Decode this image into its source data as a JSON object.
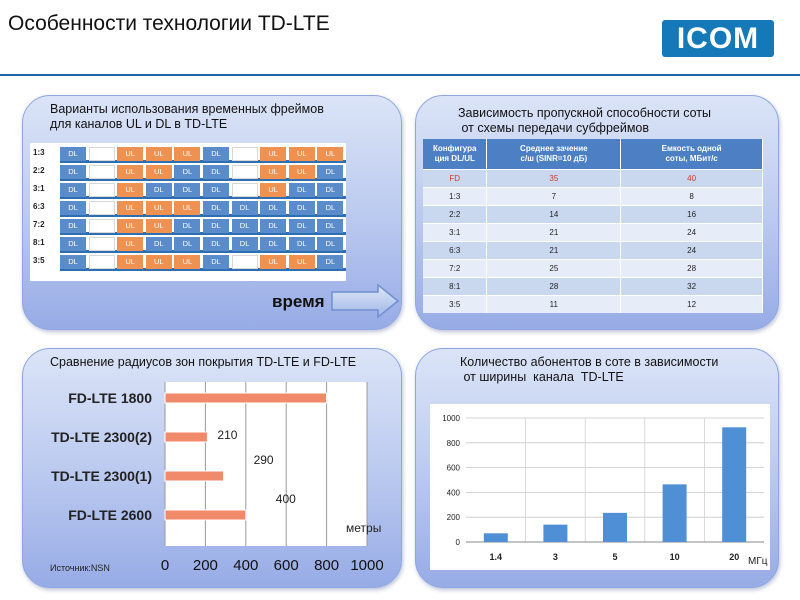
{
  "title": "Особенности технологии TD-LTE",
  "logo": "ICOM",
  "panels": {
    "frames": {
      "title": "Варианты использования временных фреймов\nдля каналов UL и DL в TD-LTE",
      "time_label": "время",
      "rows": [
        {
          "label": "1:3",
          "cells": [
            "DL",
            "",
            "UL",
            "UL",
            "UL",
            "DL",
            "",
            "UL",
            "UL",
            "UL"
          ]
        },
        {
          "label": "2:2",
          "cells": [
            "DL",
            "",
            "UL",
            "UL",
            "DL",
            "DL",
            "",
            "UL",
            "UL",
            "DL"
          ]
        },
        {
          "label": "3:1",
          "cells": [
            "DL",
            "",
            "UL",
            "DL",
            "DL",
            "DL",
            "",
            "UL",
            "DL",
            "DL"
          ]
        },
        {
          "label": "6:3",
          "cells": [
            "DL",
            "",
            "UL",
            "UL",
            "UL",
            "DL",
            "DL",
            "DL",
            "DL",
            "DL"
          ]
        },
        {
          "label": "7:2",
          "cells": [
            "DL",
            "",
            "UL",
            "UL",
            "DL",
            "DL",
            "DL",
            "DL",
            "DL",
            "DL"
          ]
        },
        {
          "label": "8:1",
          "cells": [
            "DL",
            "",
            "UL",
            "DL",
            "DL",
            "DL",
            "DL",
            "DL",
            "DL",
            "DL"
          ]
        },
        {
          "label": "3:5",
          "cells": [
            "DL",
            "",
            "UL",
            "UL",
            "UL",
            "DL",
            "",
            "UL",
            "UL",
            "DL"
          ]
        }
      ]
    },
    "throughput": {
      "title": "Зависимость пропускной способности соты\n от схемы передачи субфреймов",
      "headers": [
        "Конфигура\nция DL/UL",
        "Среднее зачение\nс/ш (SINR=10 дБ)",
        "Емкость одной\nсоты, МБит/с"
      ],
      "rows": [
        [
          "FD",
          "35",
          "40"
        ],
        [
          "1:3",
          "7",
          "8"
        ],
        [
          "2:2",
          "14",
          "16"
        ],
        [
          "3:1",
          "21",
          "24"
        ],
        [
          "6:3",
          "21",
          "24"
        ],
        [
          "7:2",
          "25",
          "28"
        ],
        [
          "8:1",
          "28",
          "32"
        ],
        [
          "3:5",
          "11",
          "12"
        ]
      ]
    },
    "coverage": {
      "title": "Сравнение радиусов зон покрытия TD-LTE и FD-LTE",
      "source": "Источник:NSN"
    },
    "subscribers": {
      "title": "Количество абонентов в соте в зависимости\n от ширины  канала  TD-LTE"
    }
  },
  "chart_data": [
    {
      "type": "bar",
      "orientation": "horizontal",
      "categories": [
        "FD-LTE 1800",
        "TD-LTE 2300(2)",
        "TD-LTE 2300(1)",
        "FD-LTE 2600"
      ],
      "values": [
        800,
        210,
        290,
        400
      ],
      "data_labels": [
        "",
        "210",
        "290",
        "400"
      ],
      "xlim": [
        0,
        1000
      ],
      "xticks": [
        "0",
        "200",
        "400",
        "600",
        "800",
        "1000"
      ],
      "xlabel": "метры",
      "bar_color": "#f08a6a"
    },
    {
      "type": "bar",
      "categories": [
        "1.4",
        "3",
        "5",
        "10",
        "20"
      ],
      "values": [
        70,
        140,
        235,
        465,
        925
      ],
      "ylim": [
        0,
        1000
      ],
      "yticks": [
        "0",
        "200",
        "400",
        "600",
        "800",
        "1000"
      ],
      "xlabel": "МГц",
      "bar_color": "#4f8fd6"
    }
  ]
}
